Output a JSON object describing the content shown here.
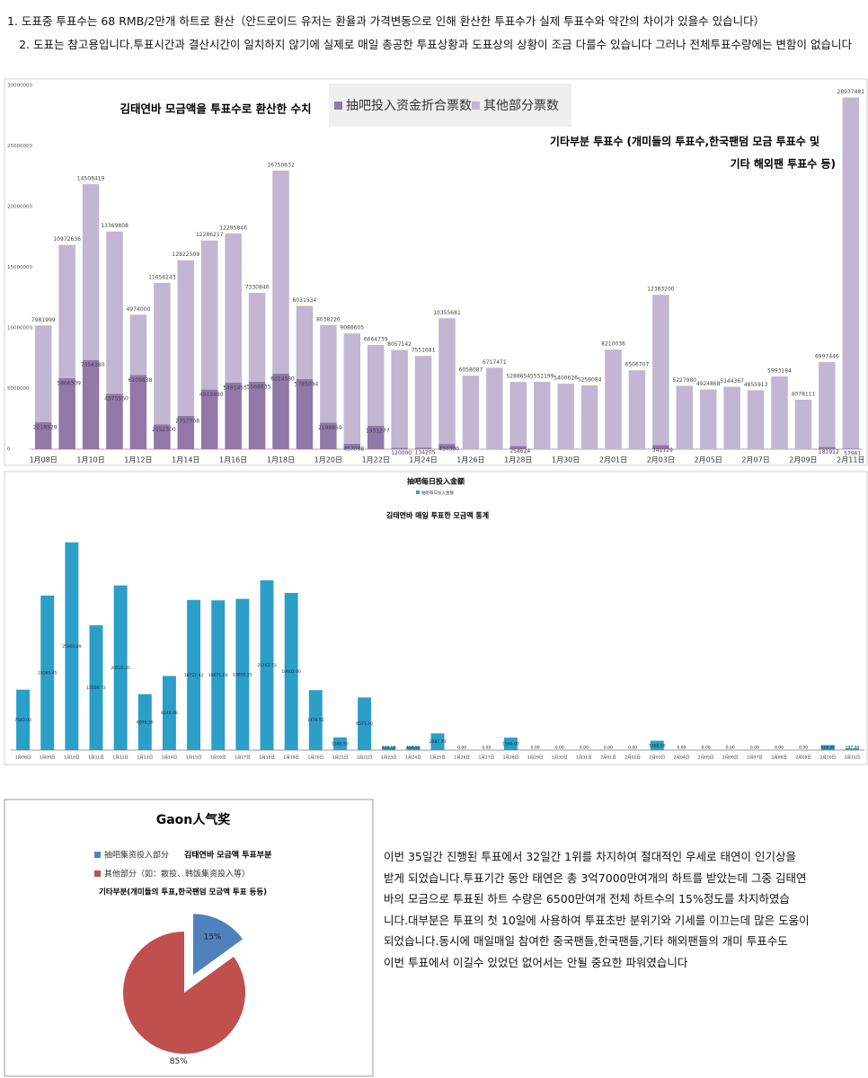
{
  "notes": [
    "1. 도표중 투표수는 68 RMB/2만개 하트로 환산（안드로이드 유저는 환율과 가격변동으로 인해 환산한 투표수가 실제 투표수와 약간의 차이가 있을수 있습니다）",
    "2. 도표는 참고용입니다.투표시간과 결산시간이 일치하지 않기에 실제로 매일 총공한 투표상황과 도표상의 상황이 조금 다를수 있습니다 그러나 전체투표수량에는 변함이 없습니다"
  ],
  "paragraph": [
    "이번 35일간 진행된 투표에서 32일간 1위를 차지하여 절대적인 우세로  태연이 인기상을",
    "받게 되었습니다.투표기간 동안 태연은 총 3억7000만여개의 하트를 받았는데 그중 김태연",
    "바의 모금으로 투표된 하트 수량은 6500만여개 전체 하트수의 15%정도를 차지하였습",
    "니다.대부분은 투표의 첫 10일에 사용하여 투표초반  분위기와 기세를 이끄는데 많은 도움이",
    "되었습니다.동시에 매일매일 참여한 중국팬들,한국팬들,기타 해외팬들의 개미 투표수도",
    "이번 투표에서 이길수 있었던 없어서는 안될 중요한 파워였습니다"
  ],
  "chart_data": [
    {
      "type": "stacked_bar",
      "annotations": [
        "김태연바 모금액을 투표수로 환산한 수치",
        "기타부분 투표수 (개미들의 투표수,한국팬덤 모금 투표수 및",
        "기타 해외팬 투표수 등)"
      ],
      "categories": [
        "1月08日",
        null,
        "1月10日",
        null,
        "1月12日",
        null,
        "1月14日",
        null,
        "1月16日",
        null,
        "1月18日",
        null,
        "1月20日",
        null,
        "1月22日",
        null,
        "1月24日",
        null,
        "1月26日",
        null,
        "1月28日",
        null,
        "1月30日",
        null,
        "2月01日",
        null,
        "2月03日",
        null,
        "2月05日",
        null,
        "2月07日",
        null,
        "2月09日",
        null,
        "2月11日"
      ],
      "series": [
        {
          "name": "抽吧投入资金折合票数",
          "color": "#9178a9",
          "values": [
            2218529,
            5866309,
            7354380,
            4575560,
            6109838,
            2052300,
            2757708,
            4919880,
            5491455,
            5566635,
            6224580,
            5785094,
            2198859,
            457098,
            1931277,
            120000,
            134205,
            434300,
            0,
            0,
            254624,
            0,
            0,
            0,
            0,
            0,
            341129,
            0,
            0,
            0,
            0,
            0,
            0,
            181912,
            57961
          ]
        },
        {
          "name": "其他部分票数",
          "color": "#c2b6d2",
          "values": [
            7981999,
            10972636,
            14508419,
            13369808,
            4974000,
            11656243,
            12822509,
            12286217,
            12295846,
            7330840,
            16750632,
            6031534,
            8038226,
            9086605,
            6664739,
            8057142,
            7551681,
            10355681,
            6058087,
            6717471,
            5288654,
            5551199,
            5400626,
            5259084,
            8210036,
            6506707,
            12383200,
            5227980,
            4924868,
            5144367,
            4855913,
            5993184,
            4078111,
            6997446,
            28937481
          ]
        }
      ],
      "ylim": [
        0,
        30000000
      ],
      "yticks": [
        0,
        5000000,
        10000000,
        15000000,
        20000000,
        25000000,
        30000000
      ]
    },
    {
      "type": "bar",
      "title": "抽吧每日投入金额",
      "annotation": "김태연바 매일 투표한 모금액 통계",
      "categories": [
        "1月08日",
        "1月09日",
        "1月10日",
        "1月11日",
        "1月12日",
        "1月13日",
        "1月14日",
        "1月15日",
        "1月16日",
        "1月17日",
        "1月18日",
        "1月19日",
        "1月20日",
        "1月21日",
        "1月22日",
        "1月23日",
        "1月24日",
        "1月25日",
        "1月26日",
        "1月27日",
        "1月28日",
        "1月29日",
        "1月30日",
        "1月31日",
        "2月01日",
        "2月02日",
        "2月03日",
        "2月04日",
        "2月05日",
        "2月06日",
        "2月07日",
        "2月08日",
        "2月09日",
        "2月10日",
        "2月11日"
      ],
      "series": [
        {
          "name": "抽吧每日投入金额",
          "color": "#2b9fc8",
          "values": [
            7543,
            19265.45,
            25903.89,
            15556.73,
            20535.45,
            6978.3,
            9240.48,
            18727.42,
            18671,
            18855.25,
            21163.53,
            19602,
            7479.55,
            1585.5,
            6573.2,
            409,
            450.52,
            2087.7,
            0,
            0,
            1560,
            0,
            0,
            0,
            0,
            0,
            1168,
            0,
            0,
            0,
            0,
            0,
            0,
            619.2,
            197
          ],
          "value_labels": [
            "7543.00",
            "19265.45",
            "25903.89",
            "15556.73",
            "20535.45",
            "6978.30",
            "9240.48",
            "18727.42",
            "18671.00",
            "18855.25",
            "21163.53",
            "19602.00",
            "7479.55",
            "1585.50",
            "6573.20",
            "409.00",
            "450.52",
            "2087.70",
            "0.00",
            "0.00",
            "1560.00",
            "0.00",
            "0.00",
            "0.00",
            "0.00",
            "0.00",
            "1168.00",
            "0.00",
            "0.00",
            "0.00",
            "0.00",
            "0.00",
            "0.00",
            "619.20",
            "197.00"
          ]
        }
      ],
      "ylim": [
        0,
        28000
      ]
    },
    {
      "type": "pie",
      "title": "Gaon人气奖",
      "annotations": [
        "김태연바 모금액 투표부분",
        "기타부분(개미들의 투표,한국팬덤 모금액 투표 등등)"
      ],
      "categories": [
        "抽吧集资投入部分",
        "其他部分（如：散投、韩饭集资投入等）"
      ],
      "values": [
        15,
        85
      ],
      "value_labels": [
        "15%",
        "85%"
      ],
      "colors": [
        "#4f81bd",
        "#c0504d"
      ]
    }
  ]
}
